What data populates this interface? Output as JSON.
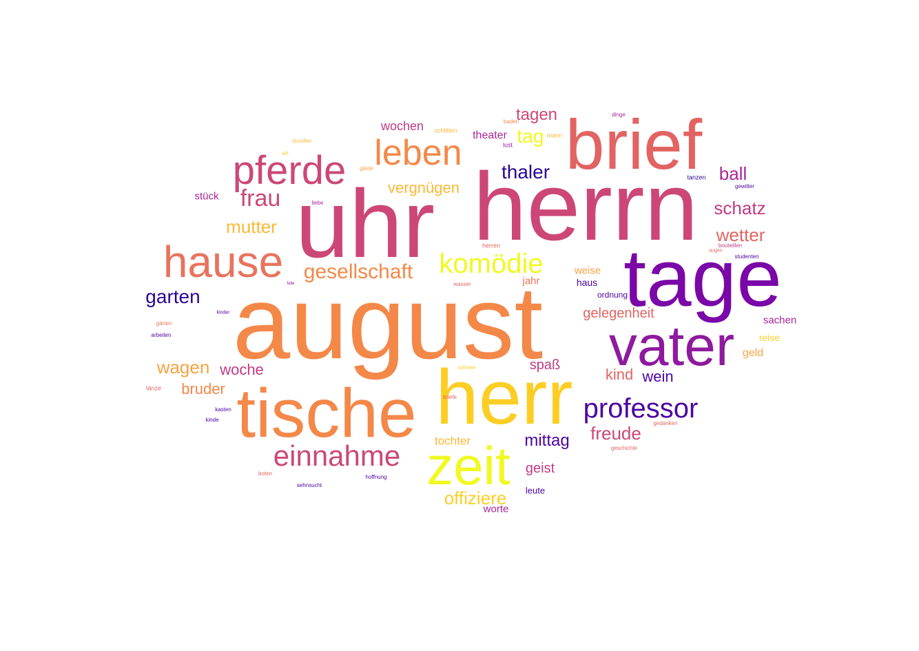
{
  "palette": {
    "navy": "#2a0593",
    "indigo": "#4b03a1",
    "purple": "#7a07a8",
    "violet": "#8e1a9e",
    "magenta": "#a92495",
    "plum": "#c13a83",
    "rose": "#cc4778",
    "coral": "#e16462",
    "salmon": "#e8735c",
    "orange": "#f48849",
    "amber": "#f7a241",
    "gold": "#fbb835",
    "sun": "#fcce25",
    "yellow": "#f0f921"
  },
  "words": [
    {
      "text": "august",
      "color": "#f48849"
    },
    {
      "text": "herrn",
      "color": "#cc4778"
    },
    {
      "text": "uhr",
      "color": "#cc4778"
    },
    {
      "text": "tage",
      "color": "#7a07a8"
    },
    {
      "text": "herr",
      "color": "#fcce25"
    },
    {
      "text": "brief",
      "color": "#e16462"
    },
    {
      "text": "tische",
      "color": "#f48849"
    },
    {
      "text": "vater",
      "color": "#8e1a9e"
    },
    {
      "text": "hause",
      "color": "#e8735c"
    },
    {
      "text": "zeit",
      "color": "#f0f921"
    },
    {
      "text": "pferde",
      "color": "#cc4778"
    },
    {
      "text": "leben",
      "color": "#f48849"
    },
    {
      "text": "einnahme",
      "color": "#cc4778"
    },
    {
      "text": "professor",
      "color": "#4b03a1"
    },
    {
      "text": "komödie",
      "color": "#f0f921"
    },
    {
      "text": "gesellschaft",
      "color": "#f48849"
    },
    {
      "text": "frau",
      "color": "#cc4778"
    },
    {
      "text": "thaler",
      "color": "#2a0593"
    },
    {
      "text": "tag",
      "color": "#f0f921"
    },
    {
      "text": "tagen",
      "color": "#cc4778"
    },
    {
      "text": "schatz",
      "color": "#c13a83"
    },
    {
      "text": "wetter",
      "color": "#e16462"
    },
    {
      "text": "ball",
      "color": "#a92495"
    },
    {
      "text": "mutter",
      "color": "#fbb835"
    },
    {
      "text": "vergnügen",
      "color": "#fbb835"
    },
    {
      "text": "garten",
      "color": "#2a0593"
    },
    {
      "text": "wagen",
      "color": "#f7a241"
    },
    {
      "text": "woche",
      "color": "#c13a83"
    },
    {
      "text": "bruder",
      "color": "#f48849"
    },
    {
      "text": "freude",
      "color": "#cc4778"
    },
    {
      "text": "mittag",
      "color": "#4b03a1"
    },
    {
      "text": "gelegenheit",
      "color": "#e16462"
    },
    {
      "text": "kind",
      "color": "#e16462"
    },
    {
      "text": "wein",
      "color": "#4b03a1"
    },
    {
      "text": "offiziere",
      "color": "#fcce25"
    },
    {
      "text": "wochen",
      "color": "#c13a83"
    },
    {
      "text": "theater",
      "color": "#a92495"
    },
    {
      "text": "spaß",
      "color": "#c13a83"
    },
    {
      "text": "geist",
      "color": "#c13a83"
    },
    {
      "text": "tochter",
      "color": "#fbb835"
    },
    {
      "text": "stück",
      "color": "#a92495"
    },
    {
      "text": "sachen",
      "color": "#a92495"
    },
    {
      "text": "weise",
      "color": "#f7a241"
    },
    {
      "text": "jahr",
      "color": "#e8735c"
    },
    {
      "text": "haus",
      "color": "#4b03a1"
    },
    {
      "text": "geld",
      "color": "#f7a241"
    },
    {
      "text": "reise",
      "color": "#fcce25"
    },
    {
      "text": "ordnung",
      "color": "#4b03a1"
    },
    {
      "text": "leute",
      "color": "#4b03a1"
    },
    {
      "text": "worte",
      "color": "#a92495"
    },
    {
      "text": "dinge",
      "color": "#a92495"
    },
    {
      "text": "schlitten",
      "color": "#fbb835"
    },
    {
      "text": "baden",
      "color": "#f48849"
    },
    {
      "text": "lust",
      "color": "#8e1a9e"
    },
    {
      "text": "mann",
      "color": "#fbb835"
    },
    {
      "text": "stunden",
      "color": "#fbb835"
    },
    {
      "text": "art",
      "color": "#fcce25"
    },
    {
      "text": "gäste",
      "color": "#f7a241"
    },
    {
      "text": "liebe",
      "color": "#a92495"
    },
    {
      "text": "tanzen",
      "color": "#2a0593"
    },
    {
      "text": "gewitter",
      "color": "#4b03a1"
    },
    {
      "text": "herren",
      "color": "#e16462"
    },
    {
      "text": "bouteillen",
      "color": "#c13a83"
    },
    {
      "text": "augen",
      "color": "#e16462"
    },
    {
      "text": "studenten",
      "color": "#4b03a1"
    },
    {
      "text": "falle",
      "color": "#8e1a9e"
    },
    {
      "text": "wasser",
      "color": "#e16462"
    },
    {
      "text": "kinder",
      "color": "#4b03a1"
    },
    {
      "text": "gärten",
      "color": "#e8735c"
    },
    {
      "text": "arbeiten",
      "color": "#4b03a1"
    },
    {
      "text": "schnee",
      "color": "#fcce25"
    },
    {
      "text": "tänze",
      "color": "#e16462"
    },
    {
      "text": "briefe",
      "color": "#e16462"
    },
    {
      "text": "kasten",
      "color": "#4b03a1"
    },
    {
      "text": "kinde",
      "color": "#4b03a1"
    },
    {
      "text": "gedanken",
      "color": "#e16462"
    },
    {
      "text": "geschichte",
      "color": "#e16462"
    },
    {
      "text": "boten",
      "color": "#e16462"
    },
    {
      "text": "hoffnung",
      "color": "#4b03a1"
    },
    {
      "text": "sehnsucht",
      "color": "#4b03a1"
    }
  ]
}
